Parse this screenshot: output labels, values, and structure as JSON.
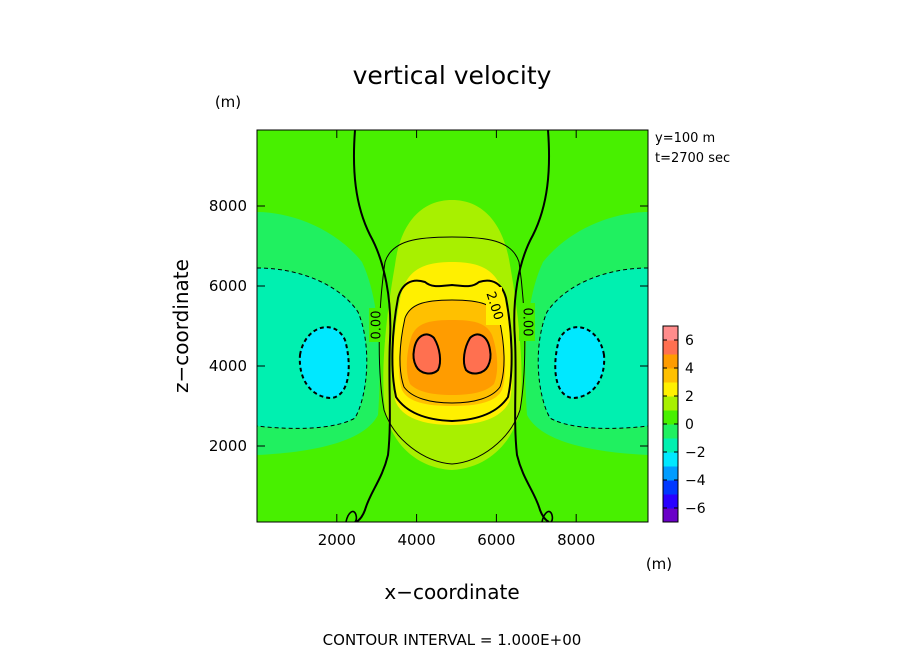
{
  "chart_data": {
    "type": "heatmap",
    "title": "vertical velocity",
    "xlabel": "x−coordinate",
    "ylabel": "z−coordinate",
    "x_unit": "(m)",
    "y_unit": "(m)",
    "xlim": [
      0,
      9800
    ],
    "ylim": [
      100,
      9900
    ],
    "x_ticks": [
      2000,
      4000,
      6000,
      8000
    ],
    "x_tick_labels": [
      "2000",
      "4000",
      "6000",
      "8000"
    ],
    "y_ticks": [
      2000,
      4000,
      6000,
      8000
    ],
    "y_tick_labels": [
      "2000",
      "4000",
      "6000",
      "8000"
    ],
    "info": [
      "y=100 m",
      "t=2700 sec"
    ],
    "contour_labels": [
      "0.00",
      "2.00",
      "0.00"
    ],
    "footer": "CONTOUR INTERVAL = 1.000E+00",
    "colorbar": {
      "min": -7,
      "max": 7,
      "tick_values": [
        6,
        4,
        2,
        0,
        -2,
        -4,
        -6
      ],
      "tick_labels": [
        "6",
        "4",
        "2",
        "0",
        "−2",
        "−4",
        "−6"
      ],
      "levels": [
        {
          "from": -7,
          "to": -6,
          "color": "#6a00c8"
        },
        {
          "from": -6,
          "to": -5,
          "color": "#2a00ff"
        },
        {
          "from": -5,
          "to": -4,
          "color": "#0038ff"
        },
        {
          "from": -4,
          "to": -3,
          "color": "#009cff"
        },
        {
          "from": -3,
          "to": -2,
          "color": "#00e8ff"
        },
        {
          "from": -2,
          "to": -1,
          "color": "#00f0b0"
        },
        {
          "from": -1,
          "to": 0,
          "color": "#20f060"
        },
        {
          "from": 0,
          "to": 1,
          "color": "#48f000"
        },
        {
          "from": 1,
          "to": 2,
          "color": "#a8f000"
        },
        {
          "from": 2,
          "to": 3,
          "color": "#fff000"
        },
        {
          "from": 3,
          "to": 4,
          "color": "#ffc000"
        },
        {
          "from": 4,
          "to": 5,
          "color": "#ff9c00"
        },
        {
          "from": 5,
          "to": 6,
          "color": "#ff7050"
        },
        {
          "from": 6,
          "to": 7,
          "color": "#ff8c8c"
        }
      ]
    },
    "field_features": [
      {
        "kind": "updraft-core",
        "x": 4300,
        "z": 4400,
        "value": 5.2
      },
      {
        "kind": "updraft-core",
        "x": 5800,
        "z": 4400,
        "value": 5.2
      },
      {
        "kind": "downdraft",
        "x": 1700,
        "z": 4200,
        "value": -2.6
      },
      {
        "kind": "downdraft",
        "x": 8100,
        "z": 4200,
        "value": -2.6
      }
    ]
  }
}
